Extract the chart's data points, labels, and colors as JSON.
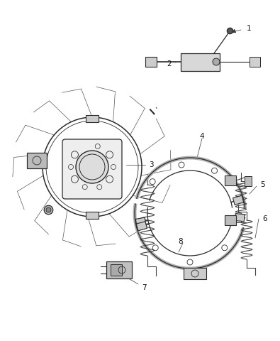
{
  "background": "#ffffff",
  "line_color": "#2a2a2a",
  "label_color": "#111111",
  "fig_w": 3.95,
  "fig_h": 4.8,
  "dpi": 100
}
